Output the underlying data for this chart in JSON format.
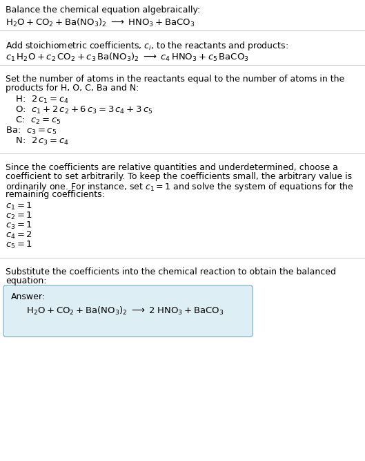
{
  "bg_color": "#ffffff",
  "text_color": "#000000",
  "answer_box_facecolor": "#deeef5",
  "answer_box_edgecolor": "#88bbd0",
  "s1_header": "Balance the chemical equation algebraically:",
  "s1_eq": "$\\mathrm{H_2O + CO_2 + Ba(NO_3)_2 \\;\\longrightarrow\\; HNO_3 + BaCO_3}$",
  "s2_header": "Add stoichiometric coefficients, $c_i$, to the reactants and products:",
  "s2_eq": "$c_1\\,\\mathrm{H_2O} + c_2\\,\\mathrm{CO_2} + c_3\\,\\mathrm{Ba(NO_3)_2} \\;\\longrightarrow\\; c_4\\,\\mathrm{HNO_3} + c_5\\,\\mathrm{BaCO_3}$",
  "s3_l1": "Set the number of atoms in the reactants equal to the number of atoms in the",
  "s3_l2": "products for H, O, C, Ba and N:",
  "s3_eqs": [
    [
      " H:  $2\\,c_1 = c_4$",
      18
    ],
    [
      " O:  $c_1 + 2\\,c_2 + 6\\,c_3 = 3\\,c_4 + 3\\,c_5$",
      18
    ],
    [
      " C:  $c_2 = c_5$",
      18
    ],
    [
      "Ba:  $c_3 = c_5$",
      8
    ],
    [
      " N:  $2\\,c_3 = c_4$",
      18
    ]
  ],
  "s4_l1": "Since the coefficients are relative quantities and underdetermined, choose a",
  "s4_l2": "coefficient to set arbitrarily. To keep the coefficients small, the arbitrary value is",
  "s4_l3": "ordinarily one. For instance, set $c_1 = 1$ and solve the system of equations for the",
  "s4_l4": "remaining coefficients:",
  "s4_vals": [
    "$c_1 = 1$",
    "$c_2 = 1$",
    "$c_3 = 1$",
    "$c_4 = 2$",
    "$c_5 = 1$"
  ],
  "s5_l1": "Substitute the coefficients into the chemical reaction to obtain the balanced",
  "s5_l2": "equation:",
  "ans_label": "Answer:",
  "ans_eq": "$\\mathrm{H_2O + CO_2 + Ba(NO_3)_2 \\;\\longrightarrow\\; 2\\;HNO_3 + BaCO_3}$"
}
